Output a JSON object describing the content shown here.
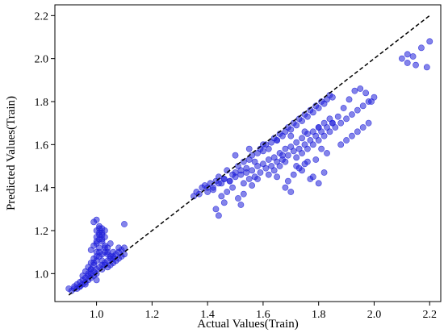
{
  "chart_data": {
    "type": "scatter",
    "xlabel": "Actual Values(Train)",
    "ylabel": "Predicted Values(Train)",
    "xlim": [
      0.85,
      2.24
    ],
    "ylim": [
      0.87,
      2.25
    ],
    "xticks": [
      1.0,
      1.2,
      1.4,
      1.6,
      1.8,
      2.0,
      2.2
    ],
    "yticks": [
      1.0,
      1.2,
      1.4,
      1.6,
      1.8,
      2.0,
      2.2
    ],
    "xtick_labels": [
      "1.0",
      "1.2",
      "1.4",
      "1.6",
      "1.8",
      "2.0",
      "2.2"
    ],
    "ytick_labels": [
      "1.0",
      "1.2",
      "1.4",
      "1.6",
      "1.8",
      "2.0",
      "2.2"
    ],
    "grid": false,
    "marker_color": "#1f1fd9",
    "reference_line": {
      "style": "dashed",
      "color": "#000000",
      "from": [
        0.9,
        0.9
      ],
      "to": [
        2.2,
        2.2
      ]
    },
    "series": [
      {
        "x": [
          0.9,
          0.91,
          0.92,
          0.93,
          0.93,
          0.94,
          0.94,
          0.95,
          0.95,
          0.95,
          0.96,
          0.96,
          0.96,
          0.97,
          0.97,
          0.97,
          0.98,
          0.98,
          0.98,
          0.98,
          0.99,
          0.99,
          0.99,
          0.99,
          1.0,
          1.0,
          1.0,
          1.0,
          1.0,
          1.01,
          1.01,
          1.01,
          1.01,
          1.02,
          1.02,
          1.02,
          1.03,
          1.03,
          1.03,
          1.04,
          1.04,
          1.05,
          1.05,
          1.06,
          1.07,
          1.08,
          1.09,
          1.1,
          0.99,
          1.0,
          1.01,
          1.02,
          1.03,
          1.0,
          1.01,
          1.02,
          0.98,
          0.99,
          1.0,
          1.01,
          1.02,
          1.03,
          1.04,
          1.05,
          1.06,
          1.0,
          1.01,
          1.02,
          1.03,
          0.97,
          0.98,
          0.99,
          1.0,
          1.01,
          1.02,
          1.03,
          1.04,
          1.05,
          1.06,
          1.07,
          1.08,
          1.09,
          1.1,
          1.1,
          1.08,
          1.06,
          1.04,
          1.02,
          1.0,
          0.96,
          0.94,
          0.92,
          1.35,
          1.36,
          1.37,
          1.38,
          1.39,
          1.4,
          1.41,
          1.42,
          1.43,
          1.44,
          1.45,
          1.46,
          1.47,
          1.48,
          1.49,
          1.5,
          1.51,
          1.52,
          1.53,
          1.54,
          1.55,
          1.56,
          1.57,
          1.58,
          1.59,
          1.6,
          1.61,
          1.62,
          1.63,
          1.64,
          1.65,
          1.66,
          1.67,
          1.68,
          1.69,
          1.7,
          1.71,
          1.72,
          1.73,
          1.74,
          1.75,
          1.76,
          1.77,
          1.78,
          1.79,
          1.8,
          1.81,
          1.82,
          1.83,
          1.84,
          1.85,
          1.4,
          1.42,
          1.44,
          1.46,
          1.48,
          1.5,
          1.52,
          1.54,
          1.56,
          1.58,
          1.6,
          1.62,
          1.64,
          1.66,
          1.68,
          1.7,
          1.72,
          1.74,
          1.76,
          1.78,
          1.8,
          1.82,
          1.84,
          1.45,
          1.47,
          1.49,
          1.51,
          1.53,
          1.55,
          1.57,
          1.59,
          1.61,
          1.63,
          1.65,
          1.67,
          1.69,
          1.71,
          1.73,
          1.75,
          1.77,
          1.79,
          1.81,
          1.83,
          1.85,
          1.5,
          1.55,
          1.6,
          1.65,
          1.7,
          1.75,
          1.8,
          1.85,
          1.43,
          1.44,
          1.46,
          1.52,
          1.53,
          1.56,
          1.58,
          1.62,
          1.64,
          1.66,
          1.68,
          1.72,
          1.74,
          1.76,
          1.78,
          1.8,
          1.82,
          1.84,
          1.86,
          1.88,
          1.9,
          1.92,
          1.94,
          1.96,
          1.98,
          2.0,
          1.87,
          1.89,
          1.91,
          1.93,
          1.95,
          1.97,
          1.99,
          1.88,
          1.9,
          1.92,
          1.94,
          1.96,
          1.98,
          2.1,
          2.12,
          2.15,
          2.17,
          2.19,
          2.2,
          2.12,
          2.14,
          1.65,
          1.68,
          1.7,
          1.72,
          1.74,
          1.76,
          1.78,
          1.8,
          1.82,
          1.67,
          1.69,
          1.71,
          1.73,
          1.75,
          1.77,
          1.79,
          1.81,
          1.83
        ],
        "y": [
          0.93,
          0.92,
          0.94,
          0.95,
          0.93,
          0.96,
          0.94,
          0.97,
          0.95,
          0.99,
          0.98,
          0.96,
          1.01,
          0.99,
          0.97,
          1.03,
          1.0,
          0.98,
          1.05,
          1.02,
          1.01,
          1.07,
          1.04,
          0.99,
          1.02,
          1.1,
          1.06,
          1.0,
          1.14,
          1.03,
          1.08,
          1.12,
          1.18,
          1.04,
          1.09,
          1.15,
          1.05,
          1.1,
          1.2,
          1.06,
          1.12,
          1.07,
          1.14,
          1.08,
          1.09,
          1.1,
          1.11,
          1.12,
          1.24,
          1.2,
          1.22,
          1.16,
          1.13,
          1.17,
          1.19,
          1.21,
          1.11,
          1.13,
          1.15,
          1.16,
          1.18,
          1.12,
          1.1,
          1.08,
          1.07,
          1.25,
          1.21,
          1.19,
          1.17,
          1.0,
          1.02,
          1.05,
          1.08,
          1.1,
          1.06,
          1.04,
          1.03,
          1.04,
          1.05,
          1.06,
          1.07,
          1.08,
          1.09,
          1.23,
          1.12,
          1.1,
          1.09,
          1.02,
          0.97,
          0.95,
          0.94,
          0.93,
          1.36,
          1.38,
          1.37,
          1.4,
          1.41,
          1.38,
          1.42,
          1.4,
          1.43,
          1.45,
          1.42,
          1.44,
          1.48,
          1.43,
          1.46,
          1.47,
          1.5,
          1.48,
          1.52,
          1.49,
          1.53,
          1.55,
          1.52,
          1.56,
          1.58,
          1.57,
          1.6,
          1.58,
          1.61,
          1.63,
          1.62,
          1.65,
          1.64,
          1.66,
          1.68,
          1.67,
          1.7,
          1.69,
          1.72,
          1.71,
          1.74,
          1.73,
          1.76,
          1.75,
          1.78,
          1.77,
          1.8,
          1.79,
          1.81,
          1.83,
          1.82,
          1.4,
          1.39,
          1.42,
          1.44,
          1.43,
          1.45,
          1.46,
          1.47,
          1.48,
          1.5,
          1.51,
          1.53,
          1.54,
          1.56,
          1.58,
          1.59,
          1.61,
          1.63,
          1.65,
          1.66,
          1.68,
          1.7,
          1.72,
          1.36,
          1.38,
          1.4,
          1.35,
          1.42,
          1.44,
          1.45,
          1.47,
          1.49,
          1.5,
          1.52,
          1.53,
          1.55,
          1.57,
          1.58,
          1.6,
          1.62,
          1.64,
          1.66,
          1.68,
          1.7,
          1.55,
          1.58,
          1.6,
          1.62,
          1.64,
          1.66,
          1.68,
          1.7,
          1.3,
          1.27,
          1.33,
          1.32,
          1.37,
          1.41,
          1.44,
          1.46,
          1.48,
          1.5,
          1.52,
          1.54,
          1.56,
          1.58,
          1.6,
          1.62,
          1.64,
          1.66,
          1.68,
          1.7,
          1.72,
          1.74,
          1.76,
          1.78,
          1.8,
          1.82,
          1.73,
          1.77,
          1.81,
          1.85,
          1.86,
          1.84,
          1.8,
          1.6,
          1.62,
          1.64,
          1.66,
          1.68,
          1.7,
          2.0,
          2.02,
          1.97,
          2.05,
          1.96,
          2.08,
          1.98,
          2.01,
          1.45,
          1.4,
          1.38,
          1.5,
          1.48,
          1.52,
          1.45,
          1.42,
          1.47,
          1.55,
          1.43,
          1.46,
          1.49,
          1.51,
          1.44,
          1.53,
          1.58,
          1.56
        ]
      }
    ]
  }
}
